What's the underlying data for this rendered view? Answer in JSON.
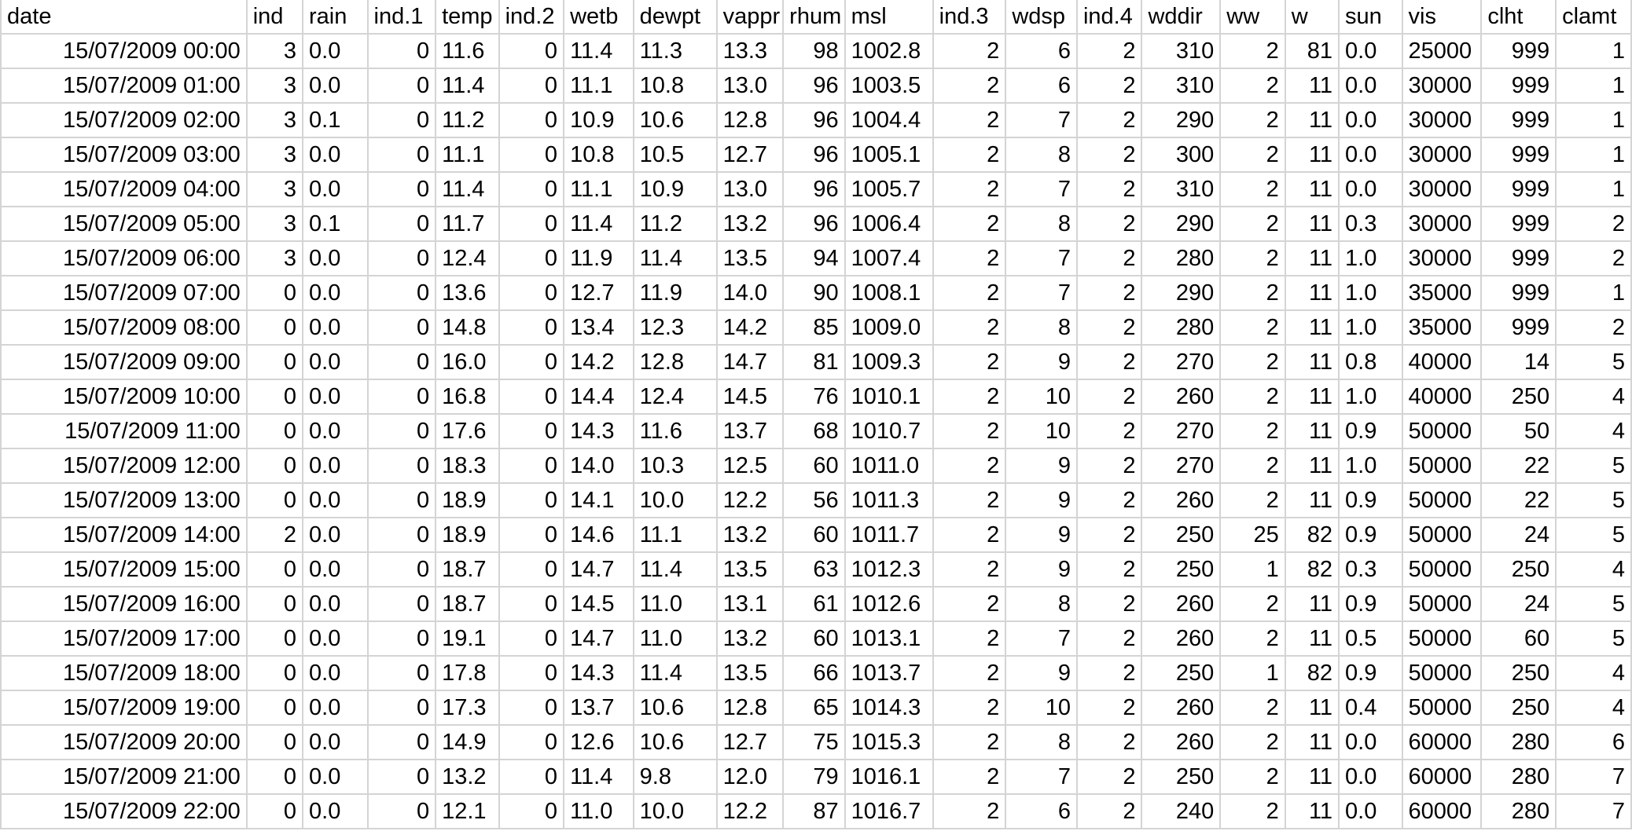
{
  "columns": [
    {
      "key": "date",
      "label": "date",
      "align": "date"
    },
    {
      "key": "ind",
      "label": "ind",
      "align": "num"
    },
    {
      "key": "rain",
      "label": "rain",
      "align": "txt"
    },
    {
      "key": "ind1",
      "label": "ind.1",
      "align": "num"
    },
    {
      "key": "temp",
      "label": "temp",
      "align": "txt"
    },
    {
      "key": "ind2",
      "label": "ind.2",
      "align": "num"
    },
    {
      "key": "wetb",
      "label": "wetb",
      "align": "txt"
    },
    {
      "key": "dewpt",
      "label": "dewpt",
      "align": "txt"
    },
    {
      "key": "vappr",
      "label": "vappr",
      "align": "txt"
    },
    {
      "key": "rhum",
      "label": "rhum",
      "align": "num"
    },
    {
      "key": "msl",
      "label": "msl",
      "align": "txt"
    },
    {
      "key": "ind3",
      "label": "ind.3",
      "align": "num"
    },
    {
      "key": "wdsp",
      "label": "wdsp",
      "align": "num"
    },
    {
      "key": "ind4",
      "label": "ind.4",
      "align": "num"
    },
    {
      "key": "wddir",
      "label": "wddir",
      "align": "num"
    },
    {
      "key": "ww",
      "label": "ww",
      "align": "num"
    },
    {
      "key": "w",
      "label": "w",
      "align": "num"
    },
    {
      "key": "sun",
      "label": "sun",
      "align": "txt"
    },
    {
      "key": "vis",
      "label": "vis",
      "align": "txt"
    },
    {
      "key": "clht",
      "label": "clht",
      "align": "num"
    },
    {
      "key": "clamt",
      "label": "clamt",
      "align": "num"
    }
  ],
  "rows": [
    [
      "15/07/2009 00:00",
      "3",
      "0.0",
      "0",
      "11.6",
      "0",
      "11.4",
      "11.3",
      "13.3",
      "98",
      "1002.8",
      "2",
      "6",
      "2",
      "310",
      "2",
      "81",
      "0.0",
      "25000",
      "999",
      "1"
    ],
    [
      "15/07/2009 01:00",
      "3",
      "0.0",
      "0",
      "11.4",
      "0",
      "11.1",
      "10.8",
      "13.0",
      "96",
      "1003.5",
      "2",
      "6",
      "2",
      "310",
      "2",
      "11",
      "0.0",
      "30000",
      "999",
      "1"
    ],
    [
      "15/07/2009 02:00",
      "3",
      "0.1",
      "0",
      "11.2",
      "0",
      "10.9",
      "10.6",
      "12.8",
      "96",
      "1004.4",
      "2",
      "7",
      "2",
      "290",
      "2",
      "11",
      "0.0",
      "30000",
      "999",
      "1"
    ],
    [
      "15/07/2009 03:00",
      "3",
      "0.0",
      "0",
      "11.1",
      "0",
      "10.8",
      "10.5",
      "12.7",
      "96",
      "1005.1",
      "2",
      "8",
      "2",
      "300",
      "2",
      "11",
      "0.0",
      "30000",
      "999",
      "1"
    ],
    [
      "15/07/2009 04:00",
      "3",
      "0.0",
      "0",
      "11.4",
      "0",
      "11.1",
      "10.9",
      "13.0",
      "96",
      "1005.7",
      "2",
      "7",
      "2",
      "310",
      "2",
      "11",
      "0.0",
      "30000",
      "999",
      "1"
    ],
    [
      "15/07/2009 05:00",
      "3",
      "0.1",
      "0",
      "11.7",
      "0",
      "11.4",
      "11.2",
      "13.2",
      "96",
      "1006.4",
      "2",
      "8",
      "2",
      "290",
      "2",
      "11",
      "0.3",
      "30000",
      "999",
      "2"
    ],
    [
      "15/07/2009 06:00",
      "3",
      "0.0",
      "0",
      "12.4",
      "0",
      "11.9",
      "11.4",
      "13.5",
      "94",
      "1007.4",
      "2",
      "7",
      "2",
      "280",
      "2",
      "11",
      "1.0",
      "30000",
      "999",
      "2"
    ],
    [
      "15/07/2009 07:00",
      "0",
      "0.0",
      "0",
      "13.6",
      "0",
      "12.7",
      "11.9",
      "14.0",
      "90",
      "1008.1",
      "2",
      "7",
      "2",
      "290",
      "2",
      "11",
      "1.0",
      "35000",
      "999",
      "1"
    ],
    [
      "15/07/2009 08:00",
      "0",
      "0.0",
      "0",
      "14.8",
      "0",
      "13.4",
      "12.3",
      "14.2",
      "85",
      "1009.0",
      "2",
      "8",
      "2",
      "280",
      "2",
      "11",
      "1.0",
      "35000",
      "999",
      "2"
    ],
    [
      "15/07/2009 09:00",
      "0",
      "0.0",
      "0",
      "16.0",
      "0",
      "14.2",
      "12.8",
      "14.7",
      "81",
      "1009.3",
      "2",
      "9",
      "2",
      "270",
      "2",
      "11",
      "0.8",
      "40000",
      "14",
      "5"
    ],
    [
      "15/07/2009 10:00",
      "0",
      "0.0",
      "0",
      "16.8",
      "0",
      "14.4",
      "12.4",
      "14.5",
      "76",
      "1010.1",
      "2",
      "10",
      "2",
      "260",
      "2",
      "11",
      "1.0",
      "40000",
      "250",
      "4"
    ],
    [
      "15/07/2009 11:00",
      "0",
      "0.0",
      "0",
      "17.6",
      "0",
      "14.3",
      "11.6",
      "13.7",
      "68",
      "1010.7",
      "2",
      "10",
      "2",
      "270",
      "2",
      "11",
      "0.9",
      "50000",
      "50",
      "4"
    ],
    [
      "15/07/2009 12:00",
      "0",
      "0.0",
      "0",
      "18.3",
      "0",
      "14.0",
      "10.3",
      "12.5",
      "60",
      "1011.0",
      "2",
      "9",
      "2",
      "270",
      "2",
      "11",
      "1.0",
      "50000",
      "22",
      "5"
    ],
    [
      "15/07/2009 13:00",
      "0",
      "0.0",
      "0",
      "18.9",
      "0",
      "14.1",
      "10.0",
      "12.2",
      "56",
      "1011.3",
      "2",
      "9",
      "2",
      "260",
      "2",
      "11",
      "0.9",
      "50000",
      "22",
      "5"
    ],
    [
      "15/07/2009 14:00",
      "2",
      "0.0",
      "0",
      "18.9",
      "0",
      "14.6",
      "11.1",
      "13.2",
      "60",
      "1011.7",
      "2",
      "9",
      "2",
      "250",
      "25",
      "82",
      "0.9",
      "50000",
      "24",
      "5"
    ],
    [
      "15/07/2009 15:00",
      "0",
      "0.0",
      "0",
      "18.7",
      "0",
      "14.7",
      "11.4",
      "13.5",
      "63",
      "1012.3",
      "2",
      "9",
      "2",
      "250",
      "1",
      "82",
      "0.3",
      "50000",
      "250",
      "4"
    ],
    [
      "15/07/2009 16:00",
      "0",
      "0.0",
      "0",
      "18.7",
      "0",
      "14.5",
      "11.0",
      "13.1",
      "61",
      "1012.6",
      "2",
      "8",
      "2",
      "260",
      "2",
      "11",
      "0.9",
      "50000",
      "24",
      "5"
    ],
    [
      "15/07/2009 17:00",
      "0",
      "0.0",
      "0",
      "19.1",
      "0",
      "14.7",
      "11.0",
      "13.2",
      "60",
      "1013.1",
      "2",
      "7",
      "2",
      "260",
      "2",
      "11",
      "0.5",
      "50000",
      "60",
      "5"
    ],
    [
      "15/07/2009 18:00",
      "0",
      "0.0",
      "0",
      "17.8",
      "0",
      "14.3",
      "11.4",
      "13.5",
      "66",
      "1013.7",
      "2",
      "9",
      "2",
      "250",
      "1",
      "82",
      "0.9",
      "50000",
      "250",
      "4"
    ],
    [
      "15/07/2009 19:00",
      "0",
      "0.0",
      "0",
      "17.3",
      "0",
      "13.7",
      "10.6",
      "12.8",
      "65",
      "1014.3",
      "2",
      "10",
      "2",
      "260",
      "2",
      "11",
      "0.4",
      "50000",
      "250",
      "4"
    ],
    [
      "15/07/2009 20:00",
      "0",
      "0.0",
      "0",
      "14.9",
      "0",
      "12.6",
      "10.6",
      "12.7",
      "75",
      "1015.3",
      "2",
      "8",
      "2",
      "260",
      "2",
      "11",
      "0.0",
      "60000",
      "280",
      "6"
    ],
    [
      "15/07/2009 21:00",
      "0",
      "0.0",
      "0",
      "13.2",
      "0",
      "11.4",
      "9.8",
      "12.0",
      "79",
      "1016.1",
      "2",
      "7",
      "2",
      "250",
      "2",
      "11",
      "0.0",
      "60000",
      "280",
      "7"
    ],
    [
      "15/07/2009 22:00",
      "0",
      "0.0",
      "0",
      "12.1",
      "0",
      "11.0",
      "10.0",
      "12.2",
      "87",
      "1016.7",
      "2",
      "6",
      "2",
      "240",
      "2",
      "11",
      "0.0",
      "60000",
      "280",
      "7"
    ]
  ]
}
